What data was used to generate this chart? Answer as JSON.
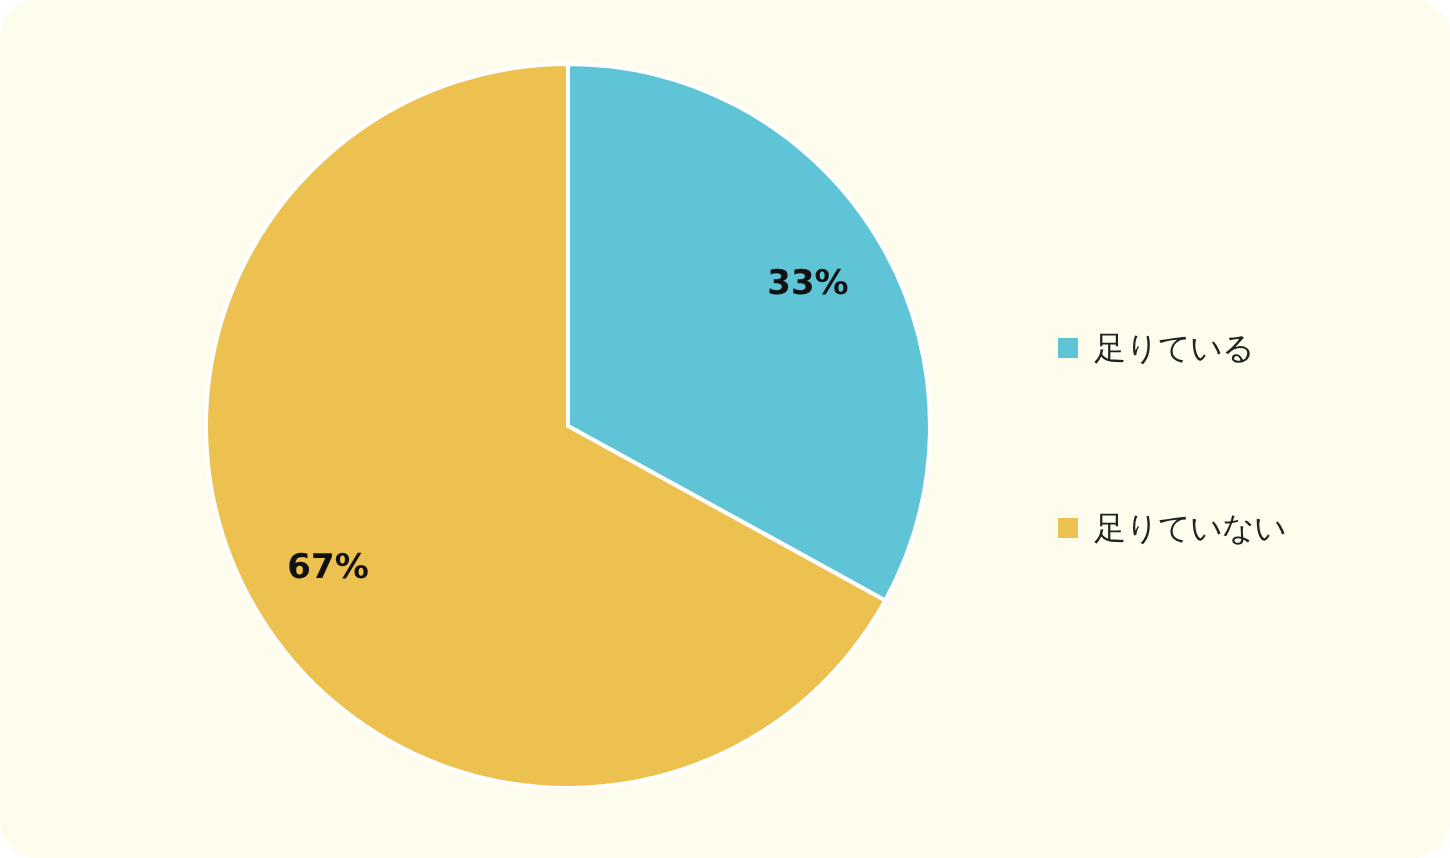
{
  "chart_data": {
    "type": "pie",
    "categories": [
      "足りている",
      "足りていない"
    ],
    "values": [
      33,
      67
    ],
    "colors": [
      "#5fc4d6",
      "#edc150"
    ],
    "value_labels": [
      "33%",
      "67%"
    ],
    "legend": "right"
  }
}
